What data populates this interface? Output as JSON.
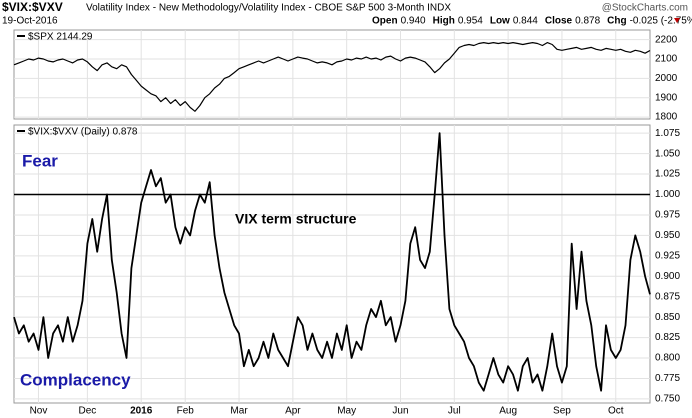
{
  "header": {
    "symbol": "$VIX:$VXV",
    "description": "Volatility Index - New Methodology/Volatility Index - CBOE S&P 500 3-Month INDX",
    "watermark": "@StockCharts.com",
    "date": "19-Oct-2016",
    "quote": [
      {
        "label": "Open",
        "value": "0.940"
      },
      {
        "label": "High",
        "value": "0.954"
      },
      {
        "label": "Low",
        "value": "0.844"
      },
      {
        "label": "Close",
        "value": "0.878"
      },
      {
        "label": "Chg",
        "value": "-0.025 (-2.75%)"
      }
    ]
  },
  "chart_data": [
    {
      "type": "line",
      "label": "$SPX 2144.29",
      "color": "#000000",
      "xlim": [
        0,
        130
      ],
      "ylim": [
        1790,
        2250
      ],
      "yticks": [
        1800,
        1900,
        2000,
        2100,
        2200
      ],
      "grid": true,
      "values": [
        2070,
        2080,
        2090,
        2100,
        2095,
        2105,
        2100,
        2090,
        2085,
        2095,
        2100,
        2090,
        2080,
        2095,
        2100,
        2085,
        2060,
        2040,
        2070,
        2080,
        2060,
        2050,
        2070,
        2060,
        2020,
        1990,
        1960,
        1940,
        1920,
        1910,
        1880,
        1900,
        1870,
        1890,
        1860,
        1880,
        1850,
        1830,
        1860,
        1900,
        1920,
        1950,
        1970,
        2000,
        2010,
        2030,
        2050,
        2060,
        2070,
        2080,
        2090,
        2080,
        2090,
        2100,
        2110,
        2100,
        2090,
        2100,
        2110,
        2105,
        2100,
        2090,
        2080,
        2085,
        2080,
        2070,
        2085,
        2090,
        2100,
        2095,
        2105,
        2100,
        2110,
        2100,
        2105,
        2095,
        2110,
        2115,
        2100,
        2090,
        2105,
        2110,
        2105,
        2095,
        2085,
        2060,
        2030,
        2050,
        2080,
        2100,
        2130,
        2160,
        2170,
        2175,
        2170,
        2180,
        2185,
        2180,
        2185,
        2180,
        2185,
        2180,
        2185,
        2180,
        2175,
        2180,
        2185,
        2180,
        2170,
        2185,
        2175,
        2150,
        2145,
        2150,
        2155,
        2160,
        2150,
        2155,
        2160,
        2150,
        2145,
        2155,
        2150,
        2145,
        2150,
        2140,
        2135,
        2145,
        2140,
        2130,
        2144.29
      ]
    },
    {
      "type": "line",
      "label": "$VIX:$VXV (Daily) 0.878",
      "color": "#000000",
      "xlim": [
        0,
        130
      ],
      "ylim": [
        0.745,
        1.085
      ],
      "grid": true,
      "yticks": [
        {
          "value": 0.75,
          "label": "0.750"
        },
        {
          "value": 0.775,
          "label": "0.775"
        },
        {
          "value": 0.8,
          "label": "0.800"
        },
        {
          "value": 0.825,
          "label": "0.825"
        },
        {
          "value": 0.85,
          "label": "0.850"
        },
        {
          "value": 0.875,
          "label": "0.875"
        },
        {
          "value": 0.9,
          "label": "0.900"
        },
        {
          "value": 0.925,
          "label": "0.925"
        },
        {
          "value": 0.95,
          "label": "0.950"
        },
        {
          "value": 0.975,
          "label": "0.975"
        },
        {
          "value": 1.0,
          "label": "1.000"
        },
        {
          "value": 1.025,
          "label": "1.025"
        },
        {
          "value": 1.05,
          "label": "1.050"
        },
        {
          "value": 1.075,
          "label": "1.075"
        }
      ],
      "xticks": [
        {
          "value": 5,
          "label": "Nov"
        },
        {
          "value": 15,
          "label": "Dec"
        },
        {
          "value": 26,
          "label": "2016"
        },
        {
          "value": 35,
          "label": "Feb"
        },
        {
          "value": 46,
          "label": "Mar"
        },
        {
          "value": 57,
          "label": "Apr"
        },
        {
          "value": 68,
          "label": "May"
        },
        {
          "value": 79,
          "label": "Jun"
        },
        {
          "value": 90,
          "label": "Jul"
        },
        {
          "value": 101,
          "label": "Aug"
        },
        {
          "value": 112,
          "label": "Sep"
        },
        {
          "value": 123,
          "label": "Oct"
        }
      ],
      "hline": 1.0,
      "annotations": [
        "Fear",
        "VIX term structure",
        "Complacency"
      ],
      "values": [
        0.85,
        0.83,
        0.84,
        0.82,
        0.83,
        0.81,
        0.85,
        0.8,
        0.83,
        0.84,
        0.82,
        0.85,
        0.82,
        0.84,
        0.87,
        0.94,
        0.97,
        0.93,
        0.97,
        1.0,
        0.92,
        0.88,
        0.83,
        0.8,
        0.91,
        0.95,
        0.99,
        1.01,
        1.03,
        1.01,
        1.02,
        0.99,
        1.0,
        0.96,
        0.94,
        0.96,
        0.95,
        0.98,
        1.0,
        0.99,
        1.015,
        0.95,
        0.91,
        0.88,
        0.86,
        0.84,
        0.83,
        0.79,
        0.81,
        0.79,
        0.8,
        0.82,
        0.8,
        0.83,
        0.81,
        0.8,
        0.79,
        0.82,
        0.85,
        0.84,
        0.81,
        0.83,
        0.81,
        0.8,
        0.82,
        0.8,
        0.83,
        0.81,
        0.84,
        0.8,
        0.82,
        0.81,
        0.84,
        0.86,
        0.85,
        0.87,
        0.84,
        0.85,
        0.82,
        0.84,
        0.87,
        0.94,
        0.96,
        0.92,
        0.91,
        0.93,
        1.0,
        1.075,
        0.95,
        0.86,
        0.84,
        0.83,
        0.82,
        0.8,
        0.79,
        0.77,
        0.76,
        0.78,
        0.8,
        0.78,
        0.77,
        0.79,
        0.78,
        0.76,
        0.79,
        0.8,
        0.77,
        0.78,
        0.76,
        0.79,
        0.83,
        0.79,
        0.77,
        0.79,
        0.94,
        0.86,
        0.93,
        0.87,
        0.84,
        0.79,
        0.76,
        0.84,
        0.81,
        0.8,
        0.81,
        0.84,
        0.92,
        0.95,
        0.93,
        0.9,
        0.878
      ]
    }
  ]
}
